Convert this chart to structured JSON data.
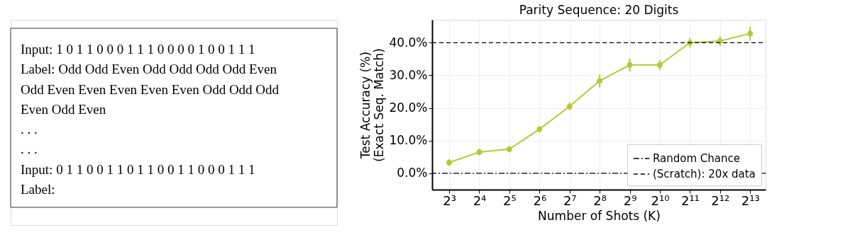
{
  "chart_data": [
    {
      "type": "other",
      "annotations": [
        "Input: 1 0 1 1 0 0 0 1 1 1 0 0 0 0 1 0 0 1 1 1",
        "Label: Odd Odd Even Odd Odd Odd Odd Even",
        " Odd Even Even Even Even Even Odd Odd Odd",
        " Even Odd Even",
        ". . .",
        ". . .",
        "Input: 0 1 1 0 0 1 1 0 1 1 0 0 1 1 0 0 0 1 1 1",
        "Label:"
      ]
    },
    {
      "type": "line",
      "title": "Parity Sequence: 20 Digits",
      "xlabel": "Number of Shots (K)",
      "ylabel": "Test Accuracy (%)\n(Exact Seq. Match)",
      "x": [
        8,
        16,
        32,
        64,
        128,
        256,
        512,
        1024,
        2048,
        4096,
        8192
      ],
      "series": [
        {
          "color": "#b5c935",
          "values": [
            3.3,
            6.5,
            7.4,
            13.5,
            20.5,
            28.3,
            33.2,
            33.2,
            40.0,
            40.5,
            42.8
          ],
          "errors": [
            1,
            1,
            1,
            1,
            1.2,
            2,
            2,
            1.5,
            1.5,
            1.5,
            2
          ]
        },
        {
          "name": "(Scratch): 20x data",
          "type": "line",
          "color": "#000000",
          "line_style": "dashed",
          "marker": "none",
          "x": [
            5.4,
            11700
          ],
          "values": [
            40,
            40
          ]
        }
      ],
      "log": "x",
      "marker": "circle",
      "grid": true,
      "legend": "bottom right",
      "xlim": [
        5.4,
        11700
      ],
      "ylim": [
        -5,
        47
      ],
      "xticks": [
        {
          "value": 8,
          "label": "2³"
        },
        {
          "value": 16,
          "label": "2⁴"
        },
        {
          "value": 32,
          "label": "2⁵"
        },
        {
          "value": 64,
          "label": "2⁶"
        },
        {
          "value": 128,
          "label": "2⁷"
        },
        {
          "value": 256,
          "label": "2⁸"
        },
        {
          "value": 512,
          "label": "2⁹"
        },
        {
          "value": 1024,
          "label": "2¹⁰"
        },
        {
          "value": 2048,
          "label": "2¹¹"
        },
        {
          "value": 4096,
          "label": "2¹²"
        },
        {
          "value": 8192,
          "label": "2¹³"
        }
      ],
      "yticks": [
        {
          "value": 0,
          "label": "0.0%"
        },
        {
          "value": 10,
          "label": "10.0%"
        },
        {
          "value": 20,
          "label": "20.0%"
        },
        {
          "value": 30,
          "label": "30.0%"
        },
        {
          "value": 40,
          "label": "40.0%"
        }
      ],
      "ref_lines": [
        {
          "axis": "y",
          "value": 0,
          "label": "Random Chance",
          "color": "#000000",
          "line_style": "dashdot"
        }
      ]
    }
  ]
}
